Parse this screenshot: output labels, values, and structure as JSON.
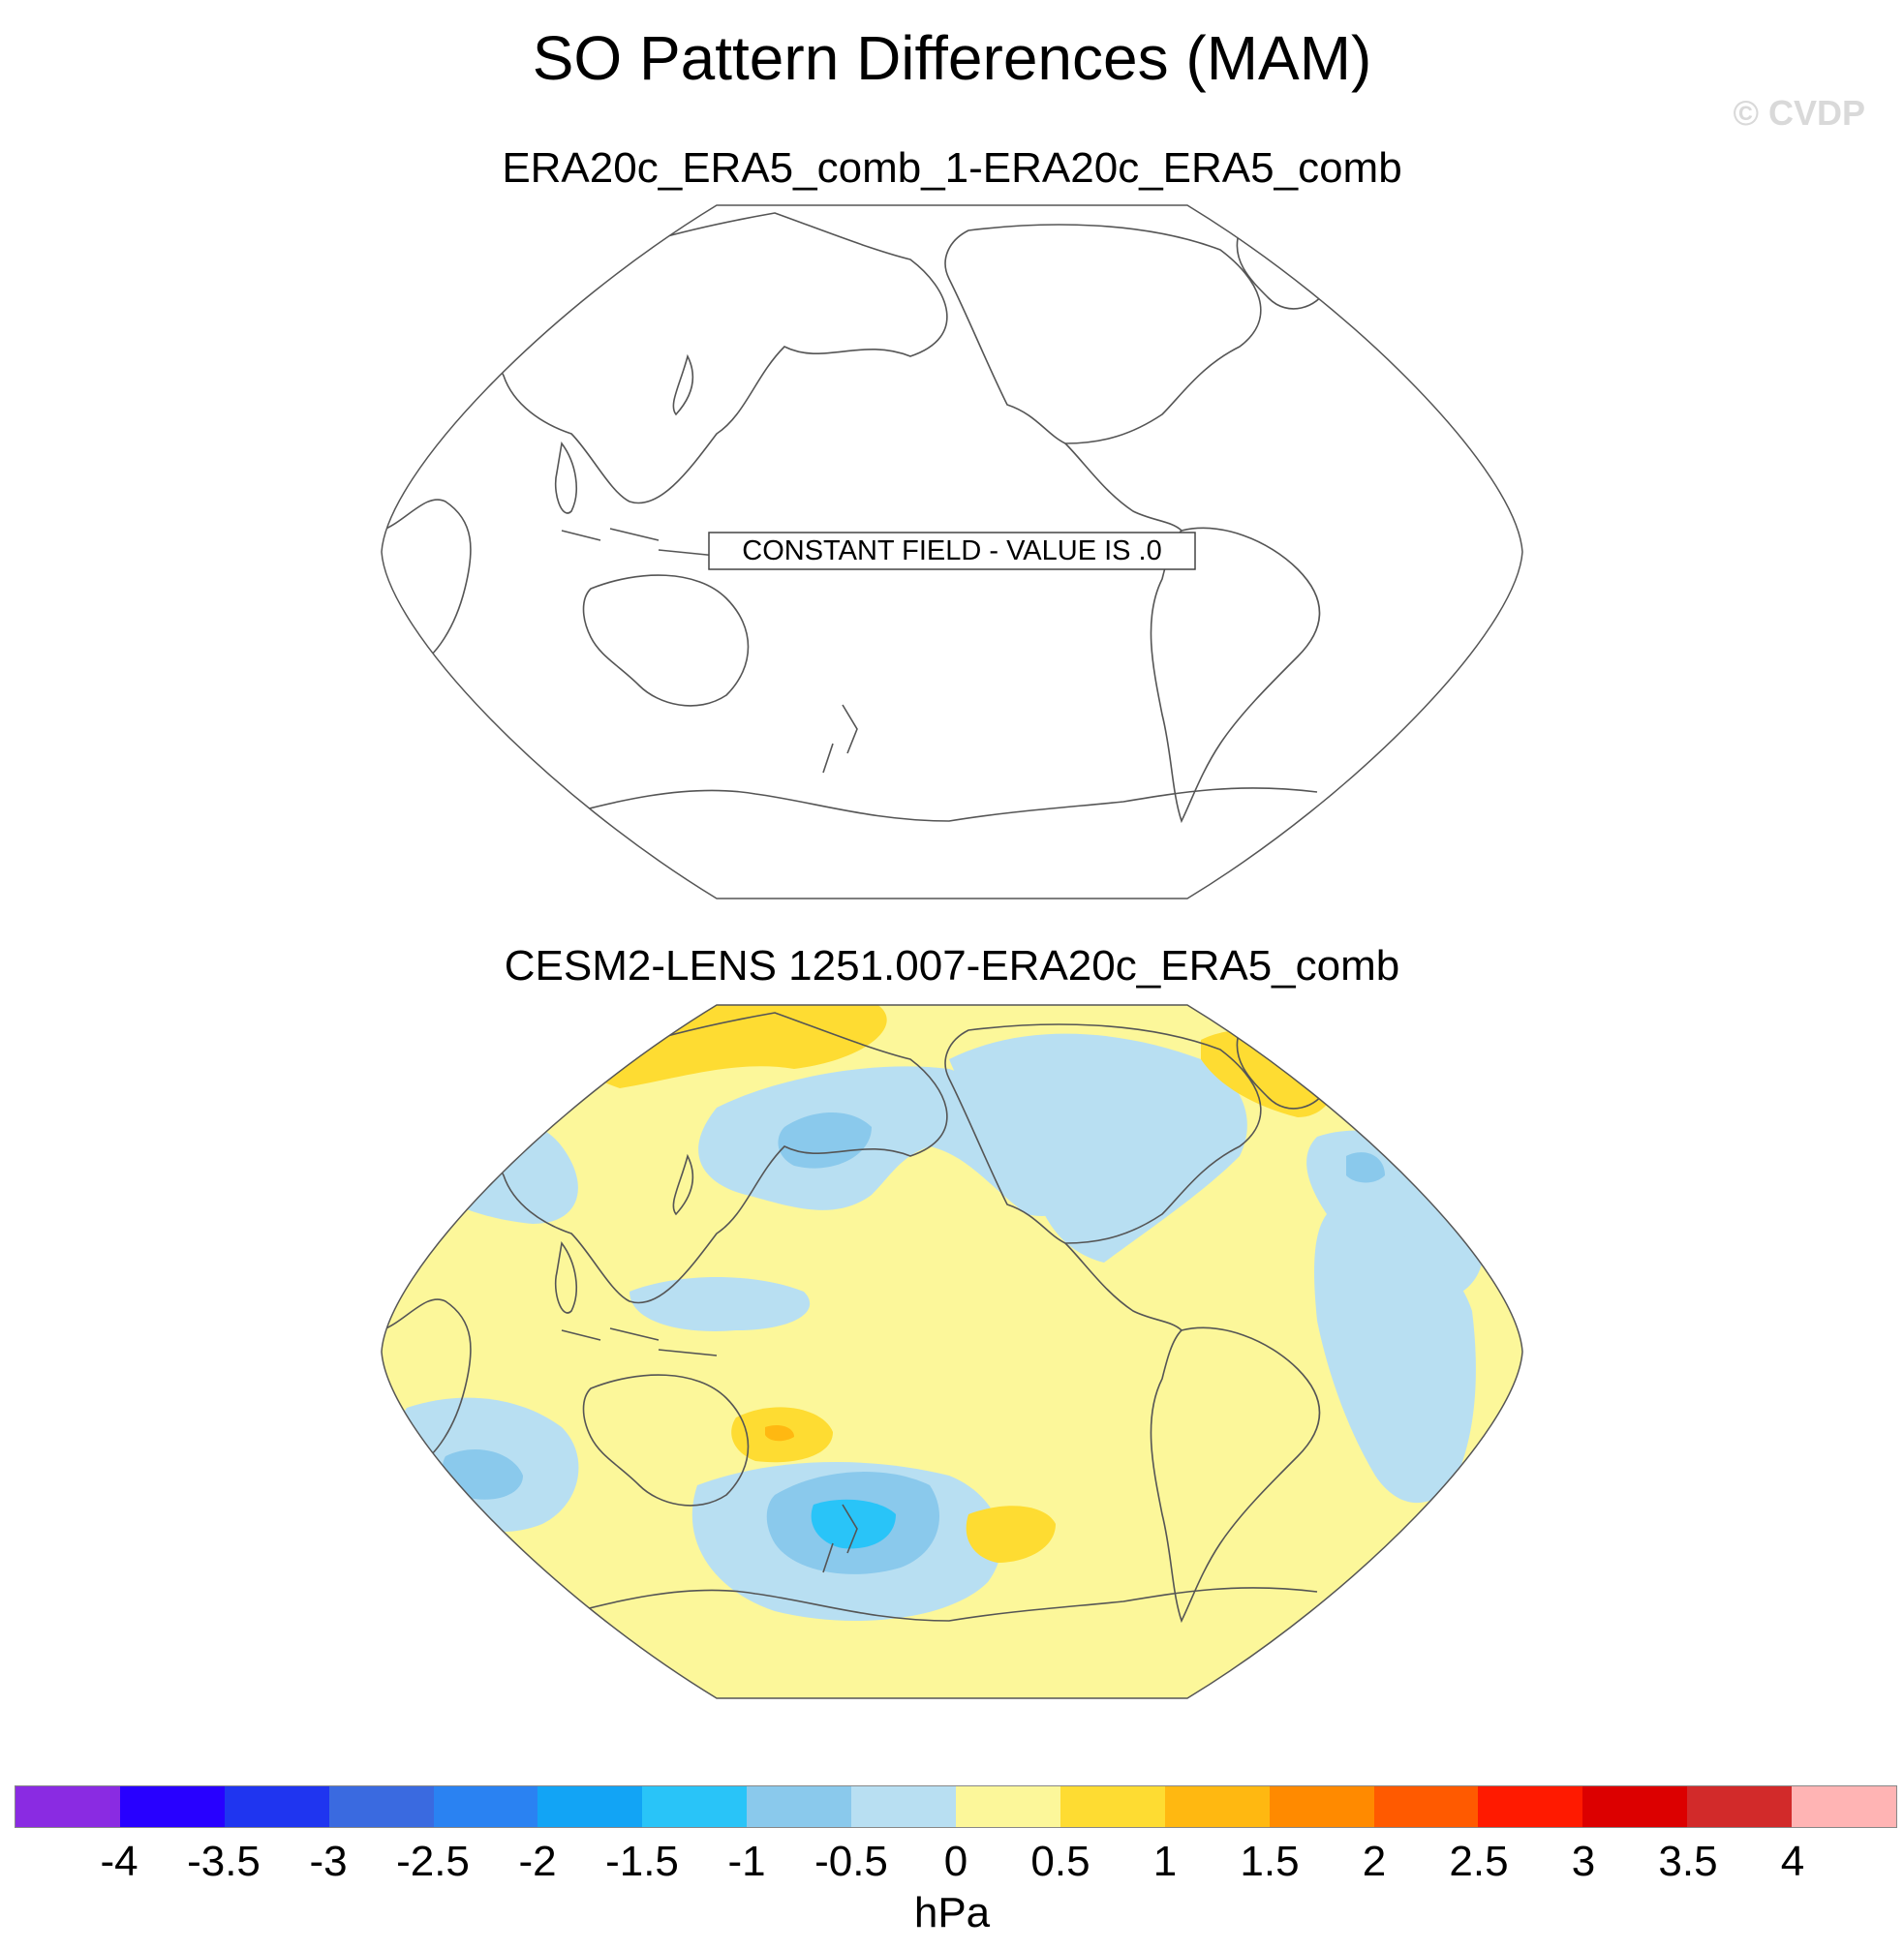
{
  "header": {
    "title": "SO Pattern Differences (MAM)",
    "watermark": "© CVDP"
  },
  "chart_data": [
    {
      "type": "heatmap",
      "projection": "Robinson (Pacific-centred, 210°E)",
      "title": "ERA20c_ERA5_comb_1-ERA20c_ERA5_comb",
      "annotation": "CONSTANT FIELD - VALUE IS .0",
      "constant_value": 0.0
    },
    {
      "type": "heatmap",
      "projection": "Robinson (Pacific-centred, 210°E)",
      "title": "CESM2-LENS 1251.007-ERA20c_ERA5_comb",
      "units": "hPa",
      "value_range": [
        -2.0,
        1.5
      ],
      "features": [
        {
          "region": "Arctic / Siberia",
          "sign": "positive",
          "approx_value": 0.75
        },
        {
          "region": "Greenland / Labrador Sea",
          "sign": "positive",
          "approx_value": 0.75
        },
        {
          "region": "North Pacific (Kamchatka–Aleutian)",
          "sign": "negative",
          "approx_value": -0.75
        },
        {
          "region": "North America / North Atlantic",
          "sign": "negative",
          "approx_value": -0.25
        },
        {
          "region": "Tropical Atlantic / South Atlantic",
          "sign": "negative",
          "approx_value": -0.25
        },
        {
          "region": "Tropical western Pacific",
          "sign": "negative",
          "approx_value": -0.25
        },
        {
          "region": "South Pacific east of New Zealand",
          "sign": "positive",
          "approx_value": 1.25
        },
        {
          "region": "Amundsen–Bellingshausen Sea",
          "sign": "negative",
          "approx_value": -1.75
        },
        {
          "region": "Southern Indian Ocean",
          "sign": "negative",
          "approx_value": -1.25
        },
        {
          "region": "South of South America",
          "sign": "positive",
          "approx_value": 0.75
        }
      ]
    }
  ],
  "colorbar": {
    "units": "hPa",
    "levels": [
      "-4",
      "-3.5",
      "-3",
      "-2.5",
      "-2",
      "-1.5",
      "-1",
      "-0.5",
      "0",
      "0.5",
      "1",
      "1.5",
      "2",
      "2.5",
      "3",
      "3.5",
      "4"
    ],
    "colors": [
      "#8a2be2",
      "#2800ff",
      "#1f35f0",
      "#3a6ae0",
      "#2a82f2",
      "#12a4f5",
      "#29c4f8",
      "#8ac9ec",
      "#b8dff2",
      "#fcf79a",
      "#fedc32",
      "#ffb811",
      "#ff8a00",
      "#ff5a00",
      "#ff1a00",
      "#dc0000",
      "#d22a2a",
      "#ffb4b4"
    ]
  },
  "colors": {
    "land_outline": "#555555",
    "map_border": "#555555",
    "zero_to_pos_half": "#fcf79a",
    "neg_half_to_zero": "#b8dff2"
  }
}
